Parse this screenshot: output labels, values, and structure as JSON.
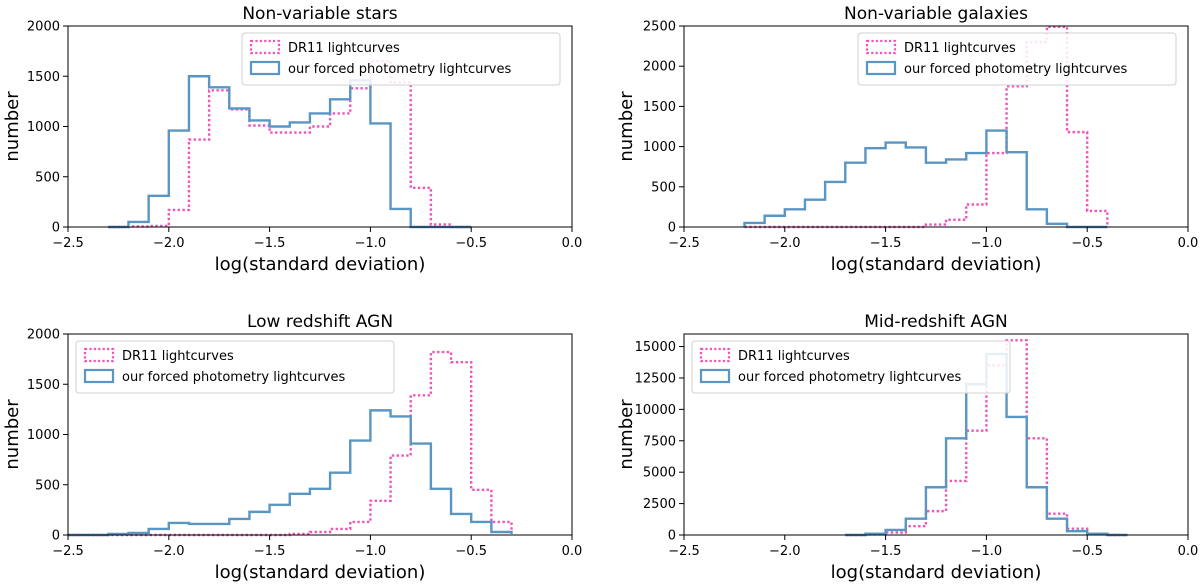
{
  "figure": {
    "series_colors": {
      "dr11": "#ee55b8",
      "forced": "#5a96c4"
    }
  },
  "chart_data": [
    {
      "type": "histogram",
      "title": "Non-variable stars",
      "xlabel": "log(standard deviation)",
      "ylabel": "number",
      "xlim": [
        -2.5,
        0.0
      ],
      "ylim": [
        0,
        2000
      ],
      "xticks": [
        -2.5,
        -2.0,
        -1.5,
        -1.0,
        -0.5,
        0.0
      ],
      "xtick_labels": [
        "−2.5",
        "−2.0",
        "−1.5",
        "−1.0",
        "−0.5",
        "0.0"
      ],
      "yticks": [
        0,
        500,
        1000,
        1500,
        2000
      ],
      "ytick_labels": [
        "0",
        "500",
        "1000",
        "1500",
        "2000"
      ],
      "legend_position": "top-right",
      "bin_edges": [
        -2.3,
        -2.2,
        -2.1,
        -2.0,
        -1.9,
        -1.8,
        -1.7,
        -1.6,
        -1.5,
        -1.4,
        -1.3,
        -1.2,
        -1.1,
        -1.0,
        -0.9,
        -0.8,
        -0.7,
        -0.6,
        -0.5
      ],
      "series": [
        {
          "name": "DR11 lightcurves",
          "style": "dotted",
          "color_key": "dr11",
          "values": [
            0,
            5,
            10,
            170,
            870,
            1360,
            1170,
            1010,
            940,
            940,
            1000,
            1130,
            1380,
            1650,
            1440,
            390,
            25,
            0
          ]
        },
        {
          "name": "our forced photometry lightcurves",
          "style": "solid",
          "color_key": "forced",
          "values": [
            0,
            50,
            310,
            960,
            1500,
            1390,
            1180,
            1060,
            1000,
            1040,
            1130,
            1270,
            1460,
            1030,
            180,
            0,
            0,
            0
          ]
        }
      ]
    },
    {
      "type": "histogram",
      "title": "Non-variable galaxies",
      "xlabel": "log(standard deviation)",
      "ylabel": "number",
      "xlim": [
        -2.5,
        0.0
      ],
      "ylim": [
        0,
        2500
      ],
      "xticks": [
        -2.5,
        -2.0,
        -1.5,
        -1.0,
        -0.5,
        0.0
      ],
      "xtick_labels": [
        "−2.5",
        "−2.0",
        "−1.5",
        "−1.0",
        "−0.5",
        "0.0"
      ],
      "yticks": [
        0,
        500,
        1000,
        1500,
        2000,
        2500
      ],
      "ytick_labels": [
        "0",
        "500",
        "1000",
        "1500",
        "2000",
        "2500"
      ],
      "legend_position": "top-right",
      "bin_edges": [
        -2.2,
        -2.1,
        -2.0,
        -1.9,
        -1.8,
        -1.7,
        -1.6,
        -1.5,
        -1.4,
        -1.3,
        -1.2,
        -1.1,
        -1.0,
        -0.9,
        -0.8,
        -0.7,
        -0.6,
        -0.5,
        -0.4
      ],
      "series": [
        {
          "name": "DR11 lightcurves",
          "style": "dotted",
          "color_key": "dr11",
          "values": [
            0,
            0,
            0,
            0,
            0,
            0,
            0,
            0,
            0,
            30,
            90,
            280,
            920,
            1750,
            2300,
            2490,
            1180,
            200,
            20
          ]
        },
        {
          "name": "our forced photometry lightcurves",
          "style": "solid",
          "color_key": "forced",
          "values": [
            50,
            140,
            220,
            340,
            560,
            800,
            980,
            1050,
            990,
            800,
            840,
            920,
            1200,
            930,
            220,
            40,
            0,
            0,
            0
          ]
        }
      ]
    },
    {
      "type": "histogram",
      "title": "Low redshift AGN",
      "xlabel": "log(standard deviation)",
      "ylabel": "number",
      "xlim": [
        -2.5,
        0.0
      ],
      "ylim": [
        0,
        2000
      ],
      "xticks": [
        -2.5,
        -2.0,
        -1.5,
        -1.0,
        -0.5,
        0.0
      ],
      "xtick_labels": [
        "−2.5",
        "−2.0",
        "−1.5",
        "−1.0",
        "−0.5",
        "0.0"
      ],
      "yticks": [
        0,
        500,
        1000,
        1500,
        2000
      ],
      "ytick_labels": [
        "0",
        "500",
        "1000",
        "1500",
        "2000"
      ],
      "legend_position": "top-left",
      "bin_edges": [
        -2.5,
        -2.4,
        -2.3,
        -2.2,
        -2.1,
        -2.0,
        -1.9,
        -1.8,
        -1.7,
        -1.6,
        -1.5,
        -1.4,
        -1.3,
        -1.2,
        -1.1,
        -1.0,
        -0.9,
        -0.8,
        -0.7,
        -0.6,
        -0.5,
        -0.4,
        -0.3
      ],
      "series": [
        {
          "name": "DR11 lightcurves",
          "style": "dotted",
          "color_key": "dr11",
          "values": [
            0,
            0,
            0,
            0,
            0,
            0,
            0,
            0,
            0,
            0,
            0,
            10,
            30,
            60,
            130,
            340,
            790,
            1390,
            1820,
            1720,
            450,
            130,
            40
          ]
        },
        {
          "name": "our forced photometry lightcurves",
          "style": "solid",
          "color_key": "forced",
          "values": [
            0,
            0,
            10,
            20,
            60,
            120,
            110,
            110,
            160,
            230,
            300,
            410,
            460,
            620,
            940,
            1240,
            1180,
            910,
            460,
            210,
            130,
            30,
            10
          ]
        }
      ]
    },
    {
      "type": "histogram",
      "title": "Mid-redshift AGN",
      "xlabel": "log(standard deviation)",
      "ylabel": "number",
      "xlim": [
        -2.5,
        0.0
      ],
      "ylim": [
        0,
        16000
      ],
      "xticks": [
        -2.5,
        -2.0,
        -1.5,
        -1.0,
        -0.5,
        0.0
      ],
      "xtick_labels": [
        "−2.5",
        "−2.0",
        "−1.5",
        "−1.0",
        "−0.5",
        "0.0"
      ],
      "yticks": [
        0,
        2500,
        5000,
        7500,
        10000,
        12500,
        15000
      ],
      "ytick_labels": [
        "0",
        "2500",
        "5000",
        "7500",
        "10000",
        "12500",
        "15000"
      ],
      "legend_position": "top-left",
      "bin_edges": [
        -1.7,
        -1.6,
        -1.5,
        -1.4,
        -1.3,
        -1.2,
        -1.1,
        -1.0,
        -0.9,
        -0.8,
        -0.7,
        -0.6,
        -0.5,
        -0.4,
        -0.3
      ],
      "series": [
        {
          "name": "DR11 lightcurves",
          "style": "dotted",
          "color_key": "dr11",
          "values": [
            0,
            50,
            200,
            700,
            1900,
            4300,
            8300,
            13500,
            15500,
            7700,
            1700,
            500,
            100,
            0
          ]
        },
        {
          "name": "our forced photometry lightcurves",
          "style": "solid",
          "color_key": "forced",
          "values": [
            0,
            100,
            400,
            1300,
            3800,
            7700,
            12000,
            14400,
            9400,
            3800,
            1300,
            300,
            100,
            0
          ]
        }
      ]
    }
  ]
}
